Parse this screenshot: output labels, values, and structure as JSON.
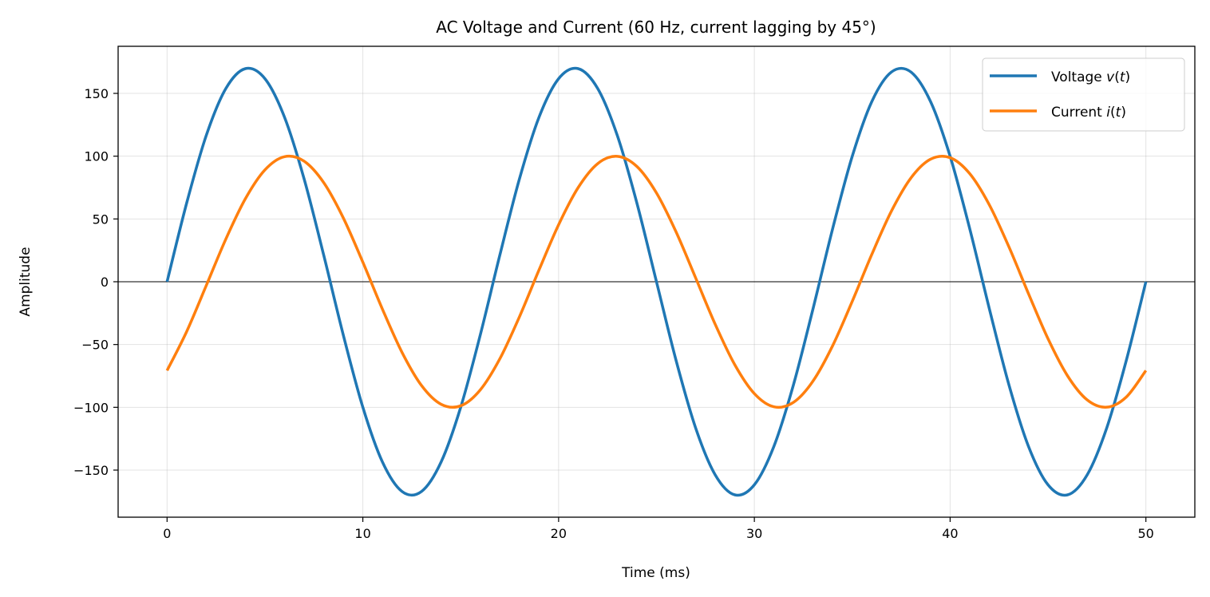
{
  "chart_data": {
    "type": "line",
    "title": "AC Voltage and Current (60 Hz, current lagging by 45°)",
    "xlabel": "Time (ms)",
    "ylabel": "Amplitude",
    "xlim": [
      -2.5,
      52.5
    ],
    "ylim": [
      -187.5,
      187.5
    ],
    "grid": true,
    "legend_position": "top-right",
    "xticks": [
      0,
      10,
      20,
      30,
      40,
      50
    ],
    "xtick_labels": [
      "0",
      "10",
      "20",
      "30",
      "40",
      "50"
    ],
    "yticks": [
      -150,
      -100,
      -50,
      0,
      50,
      100,
      150
    ],
    "ytick_labels": [
      "−150",
      "−100",
      "−50",
      "0",
      "50",
      "100",
      "150"
    ],
    "x": [
      0,
      1,
      2,
      3,
      4,
      5,
      6,
      7,
      8,
      9,
      10,
      11,
      12,
      13,
      14,
      15,
      16,
      17,
      18,
      19,
      20,
      21,
      22,
      23,
      24,
      25,
      26,
      27,
      28,
      29,
      30,
      31,
      32,
      33,
      34,
      35,
      36,
      37,
      38,
      39,
      40,
      41,
      42,
      43,
      44,
      45,
      46,
      47,
      48,
      49,
      50
    ],
    "series": [
      {
        "name": "Voltage v(t)",
        "legend_prefix": "Voltage ",
        "legend_math": "v",
        "color": "#1f77b4",
        "values": [
          0,
          62.6,
          116.4,
          153.8,
          169.7,
          161.7,
          131.0,
          81.9,
          21.3,
          -42.3,
          -99.9,
          -143.5,
          -167.0,
          -167.0,
          -143.5,
          -99.9,
          -42.3,
          21.3,
          81.9,
          131.0,
          161.7,
          169.7,
          153.8,
          116.4,
          62.6,
          0,
          -62.6,
          -116.4,
          -153.8,
          -169.7,
          -161.7,
          -131.0,
          -81.9,
          -21.3,
          42.3,
          99.9,
          143.5,
          167.0,
          167.0,
          143.5,
          99.9,
          42.3,
          -21.3,
          -81.9,
          -131.0,
          -161.7,
          -169.7,
          -153.8,
          -116.4,
          -62.6,
          0
        ]
      },
      {
        "name": "Current i(t)",
        "legend_prefix": "Current ",
        "legend_math": "i",
        "color": "#ff7f0e",
        "values": [
          -70.7,
          -39.7,
          -3.1,
          33.9,
          66.1,
          89.1,
          99.6,
          96.0,
          79.0,
          50.9,
          15.6,
          -21.8,
          -56.2,
          -82.7,
          -97.6,
          -98.8,
          -86.1,
          -61.3,
          -27.9,
          9.4,
          45.4,
          75.0,
          94.1,
          99.9,
          91.8,
          70.7,
          39.7,
          3.1,
          -33.9,
          -66.1,
          -89.1,
          -99.6,
          -96.0,
          -79.0,
          -50.9,
          -15.6,
          21.8,
          56.2,
          82.7,
          97.6,
          98.8,
          86.1,
          61.3,
          27.9,
          -9.4,
          -45.4,
          -75.0,
          -94.1,
          -99.9,
          -91.8,
          -70.7
        ]
      }
    ]
  }
}
